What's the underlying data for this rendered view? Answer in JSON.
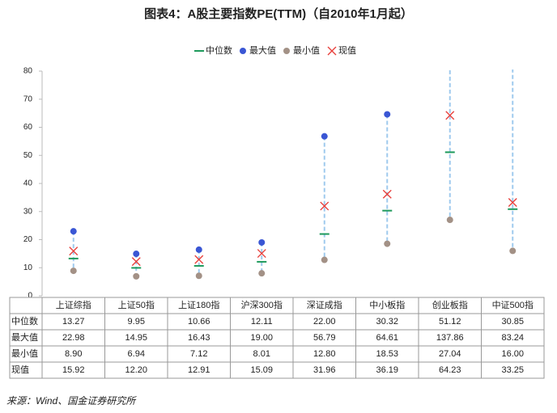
{
  "chart_data": {
    "type": "range",
    "title": "图表4：A股主要指数PE(TTM)（自2010年1月起）",
    "categories": [
      "上证综指",
      "上证50指",
      "上证180指",
      "沪深300指",
      "深证成指",
      "中小板指",
      "创业板指",
      "中证500指"
    ],
    "series": [
      {
        "name": "中位数",
        "color": "#1e9a5c",
        "values": [
          13.27,
          9.95,
          10.66,
          12.11,
          22.0,
          30.32,
          51.12,
          30.85
        ],
        "value_labels": [
          "13.27",
          "9.95",
          "10.66",
          "12.11",
          "22.00",
          "30.32",
          "51.12",
          "30.85"
        ]
      },
      {
        "name": "最大值",
        "color": "#3a56d4",
        "values": [
          22.98,
          14.95,
          16.43,
          19.0,
          56.79,
          64.61,
          137.86,
          83.24
        ],
        "value_labels": [
          "22.98",
          "14.95",
          "16.43",
          "19.00",
          "56.79",
          "64.61",
          "137.86",
          "83.24"
        ]
      },
      {
        "name": "最小值",
        "color": "#a39186",
        "values": [
          8.9,
          6.94,
          7.12,
          8.01,
          12.8,
          18.53,
          27.04,
          16.0
        ],
        "value_labels": [
          "8.90",
          "6.94",
          "7.12",
          "8.01",
          "12.80",
          "18.53",
          "27.04",
          "16.00"
        ]
      },
      {
        "name": "现值",
        "color": "#e8403c",
        "values": [
          15.92,
          12.2,
          12.91,
          15.09,
          31.96,
          36.19,
          64.23,
          33.25
        ],
        "value_labels": [
          "15.92",
          "12.20",
          "12.91",
          "15.09",
          "31.96",
          "36.19",
          "64.23",
          "33.25"
        ]
      }
    ],
    "range_color": "#9fcaee",
    "ylim": [
      0,
      80
    ],
    "yticks": [
      0,
      10,
      20,
      30,
      40,
      50,
      60,
      70,
      80
    ],
    "legend": "top",
    "source": "来源：Wind、国金证券研究所"
  }
}
